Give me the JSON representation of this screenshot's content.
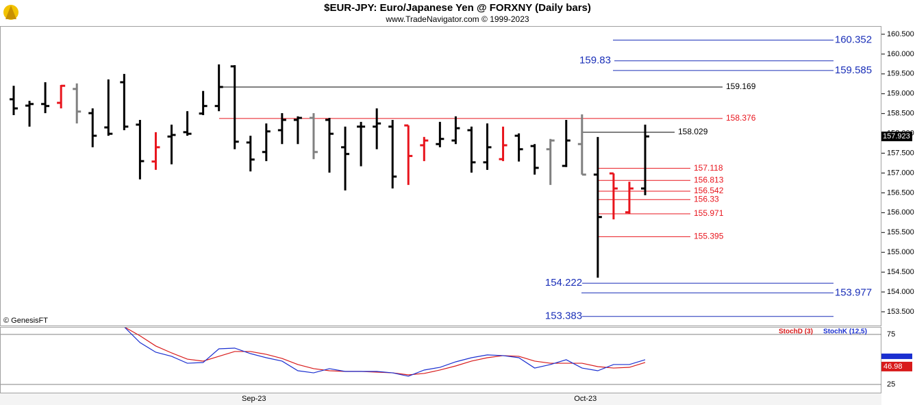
{
  "chart_data": [
    {
      "type": "ohlc",
      "title": "$EUR-JPY:  Euro/Japanese Yen @ FORXNY  (Daily bars)",
      "subtitle": "www.TradeNavigator.com © 1999-2023",
      "annotation": "© GenesisFT",
      "open": [
        158.86,
        158.7,
        158.74,
        158.77,
        159.12,
        158.51,
        158.15,
        159.29,
        158.22,
        157.29,
        157.92,
        158.03,
        158.5,
        158.69,
        159.69,
        157.77,
        157.53,
        158.08,
        158.34,
        158.39,
        158.34,
        157.65,
        158.17,
        158.17,
        158.17,
        158.2,
        157.7,
        157.73,
        157.82,
        158.08,
        157.27,
        157.35,
        157.94,
        157.68,
        157.6,
        157.18,
        157.73,
        156.96,
        156.99,
        156.01,
        156.61
      ],
      "high": [
        159.2,
        158.82,
        159.29,
        159.22,
        159.26,
        158.63,
        159.36,
        159.5,
        158.34,
        158.03,
        158.22,
        158.56,
        159.07,
        159.74,
        159.72,
        157.94,
        158.25,
        158.51,
        158.43,
        158.51,
        158.39,
        158.17,
        158.29,
        158.63,
        158.34,
        158.2,
        157.91,
        158.29,
        158.43,
        158.17,
        158.25,
        158.17,
        158.0,
        157.73,
        157.86,
        158.34,
        158.48,
        157.91,
        156.99,
        156.78,
        158.22
      ],
      "low": [
        158.46,
        158.17,
        158.51,
        158.63,
        158.25,
        157.65,
        157.94,
        158.08,
        156.84,
        157.08,
        157.22,
        157.94,
        158.46,
        158.56,
        157.6,
        157.04,
        157.3,
        157.73,
        157.73,
        157.35,
        157.01,
        156.56,
        157.17,
        157.6,
        156.61,
        156.7,
        157.3,
        157.65,
        157.73,
        157.01,
        157.08,
        157.3,
        157.29,
        156.96,
        156.7,
        157.15,
        156.96,
        154.36,
        155.83,
        155.97,
        156.44
      ],
      "close": [
        158.63,
        158.74,
        158.69,
        159.2,
        158.55,
        157.94,
        157.99,
        158.17,
        157.3,
        157.65,
        157.96,
        157.99,
        158.69,
        159.17,
        157.79,
        157.34,
        158.05,
        158.34,
        158.39,
        157.53,
        157.99,
        157.48,
        158.17,
        158.25,
        156.91,
        157.43,
        157.82,
        157.86,
        158.13,
        157.27,
        157.65,
        157.7,
        157.6,
        157.13,
        157.82,
        157.82,
        156.96,
        155.89,
        156.61,
        156.61,
        157.923
      ],
      "bar_colors": [
        "#000000",
        "#000000",
        "#000000",
        "#e8141c",
        "#808080",
        "#000000",
        "#000000",
        "#000000",
        "#000000",
        "#e8141c",
        "#000000",
        "#000000",
        "#000000",
        "#000000",
        "#000000",
        "#000000",
        "#000000",
        "#000000",
        "#000000",
        "#808080",
        "#000000",
        "#000000",
        "#000000",
        "#000000",
        "#000000",
        "#e8141c",
        "#e8141c",
        "#000000",
        "#000000",
        "#000000",
        "#000000",
        "#e8141c",
        "#000000",
        "#000000",
        "#808080",
        "#000000",
        "#808080",
        "#000000",
        "#e8141c",
        "#e8141c",
        "#000000"
      ],
      "levels": [
        {
          "value": 160.352,
          "color": "#1a2fb8"
        },
        {
          "value": 159.83,
          "color": "#1a2fb8"
        },
        {
          "value": 159.585,
          "color": "#1a2fb8"
        },
        {
          "value": 159.169,
          "color": "#000000"
        },
        {
          "value": 158.376,
          "color": "#e8141c"
        },
        {
          "value": 158.029,
          "color": "#000000"
        },
        {
          "value": 157.118,
          "color": "#e8141c"
        },
        {
          "value": 156.813,
          "color": "#e8141c"
        },
        {
          "value": 156.542,
          "color": "#e8141c"
        },
        {
          "value": 156.33,
          "color": "#e8141c"
        },
        {
          "value": 155.971,
          "color": "#e8141c"
        },
        {
          "value": 155.395,
          "color": "#e8141c"
        },
        {
          "value": 154.222,
          "color": "#1a2fb8"
        },
        {
          "value": 153.977,
          "color": "#1a2fb8"
        },
        {
          "value": 153.383,
          "color": "#1a2fb8"
        }
      ],
      "ylim": [
        153.154,
        160.707
      ],
      "yticks": [
        {
          "value": 153.5,
          "label": "153.500"
        },
        {
          "value": 154,
          "label": "154.000"
        },
        {
          "value": 154.5,
          "label": "154.500"
        },
        {
          "value": 155,
          "label": "155.000"
        },
        {
          "value": 155.5,
          "label": "155.500"
        },
        {
          "value": 156,
          "label": "156.000"
        },
        {
          "value": 156.5,
          "label": "156.500"
        },
        {
          "value": 157,
          "label": "157.000"
        },
        {
          "value": 157.5,
          "label": "157.500"
        },
        {
          "value": 158,
          "label": "158.000"
        },
        {
          "value": 158.5,
          "label": "158.500"
        },
        {
          "value": 159,
          "label": "159.000"
        },
        {
          "value": 159.5,
          "label": "159.500"
        },
        {
          "value": 160,
          "label": "160.000"
        },
        {
          "value": 160.5,
          "label": "160.500"
        }
      ]
    },
    {
      "type": "line",
      "categories": [
        null,
        null,
        null,
        null,
        null,
        null,
        null,
        null,
        null,
        null,
        null,
        null,
        null,
        null,
        null,
        "Sep-23",
        null,
        null,
        null,
        null,
        null,
        null,
        null,
        null,
        null,
        null,
        null,
        null,
        null,
        null,
        null,
        null,
        null,
        null,
        null,
        null,
        "Oct-23",
        null,
        null,
        null,
        null
      ],
      "series": [
        {
          "name": "StochD (3)",
          "color": "#d81a1a",
          "values": [
            null,
            null,
            null,
            null,
            null,
            null,
            null,
            82.5,
            73.6,
            63.4,
            56.5,
            50.3,
            48.3,
            53.1,
            57.9,
            57.9,
            55.1,
            51.0,
            44.9,
            40.8,
            38.7,
            38.0,
            38.0,
            37.3,
            36.6,
            34.6,
            36.0,
            39.4,
            43.5,
            48.3,
            51.7,
            53.8,
            53.1,
            48.3,
            46.2,
            46.2,
            46.2,
            42.8,
            41.4,
            42.1,
            46.98
          ]
        },
        {
          "name": "StochK (12,5)",
          "color": "#1a2fd0",
          "values": [
            null,
            null,
            null,
            null,
            null,
            null,
            null,
            82.5,
            66.8,
            57.2,
            53.1,
            46.2,
            46.9,
            60.6,
            61.3,
            55.8,
            51.7,
            48.3,
            38.7,
            36.6,
            40.8,
            38.0,
            38.0,
            38.0,
            36.6,
            33.2,
            39.4,
            42.1,
            47.6,
            51.7,
            54.5,
            53.8,
            51.7,
            41.4,
            44.9,
            49.7,
            41.4,
            38.7,
            44.9,
            44.9,
            49.7
          ]
        }
      ],
      "ylim": [
        16.8,
        82.5
      ],
      "yticks": [
        25,
        75
      ]
    }
  ]
}
